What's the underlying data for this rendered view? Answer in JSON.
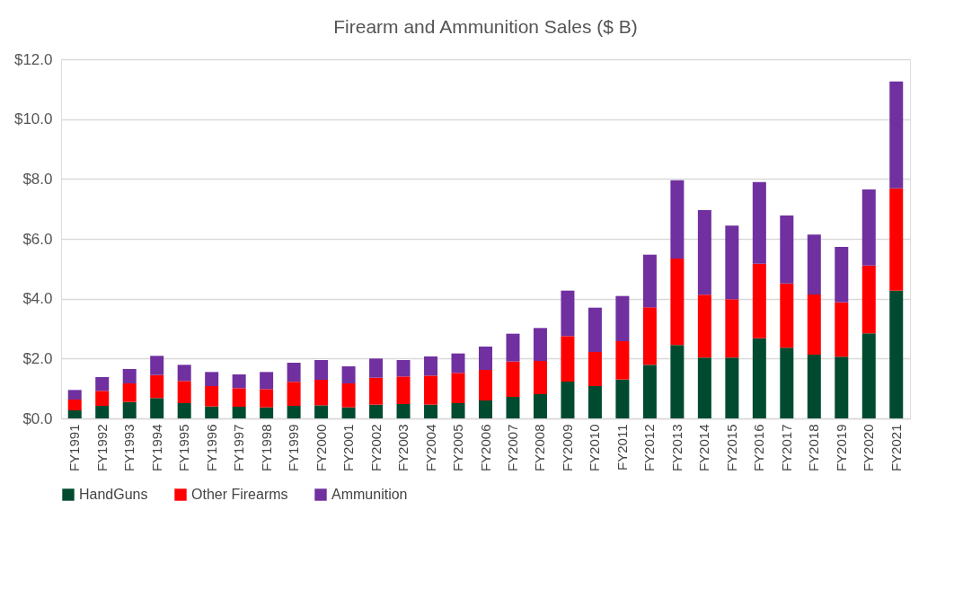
{
  "chart_data": {
    "type": "bar",
    "title": "Firearm and Ammunition Sales ($ B)",
    "stacked": true,
    "categories": [
      "FY1991",
      "FY1992",
      "FY1993",
      "FY1994",
      "FY1995",
      "FY1996",
      "FY1997",
      "FY1998",
      "FY1999",
      "FY2000",
      "FY2001",
      "FY2002",
      "FY2003",
      "FY2004",
      "FY2005",
      "FY2006",
      "FY2007",
      "FY2008",
      "FY2009",
      "FY2010",
      "FY2011",
      "FY2012",
      "FY2013",
      "FY2014",
      "FY2015",
      "FY2016",
      "FY2017",
      "FY2018",
      "FY2019",
      "FY2020",
      "FY2021"
    ],
    "series": [
      {
        "name": "HandGuns",
        "color": "#004b30",
        "values": [
          0.27,
          0.42,
          0.55,
          0.68,
          0.51,
          0.4,
          0.39,
          0.37,
          0.42,
          0.44,
          0.37,
          0.46,
          0.48,
          0.46,
          0.51,
          0.6,
          0.72,
          0.81,
          1.23,
          1.08,
          1.3,
          1.79,
          2.45,
          2.03,
          2.03,
          2.68,
          2.36,
          2.13,
          2.06,
          2.84,
          4.27
        ]
      },
      {
        "name": "Other Firearms",
        "color": "#ff0000",
        "values": [
          0.36,
          0.5,
          0.62,
          0.77,
          0.74,
          0.68,
          0.62,
          0.61,
          0.8,
          0.85,
          0.8,
          0.9,
          0.92,
          0.97,
          1.01,
          1.02,
          1.18,
          1.11,
          1.52,
          1.14,
          1.28,
          1.92,
          2.89,
          2.1,
          1.95,
          2.49,
          2.15,
          2.01,
          1.82,
          2.27,
          3.42
        ]
      },
      {
        "name": "Ammunition",
        "color": "#7030a0",
        "values": [
          0.32,
          0.46,
          0.48,
          0.64,
          0.54,
          0.47,
          0.46,
          0.57,
          0.64,
          0.66,
          0.57,
          0.64,
          0.55,
          0.64,
          0.65,
          0.78,
          0.93,
          1.1,
          1.52,
          1.48,
          1.51,
          1.76,
          2.62,
          2.83,
          2.46,
          2.73,
          2.27,
          2.0,
          1.85,
          2.54,
          3.57
        ]
      }
    ],
    "ylim": [
      0,
      12
    ],
    "yticks": [
      {
        "value": 0,
        "label": "$0.0"
      },
      {
        "value": 2,
        "label": "$2.0"
      },
      {
        "value": 4,
        "label": "$4.0"
      },
      {
        "value": 6,
        "label": "$6.0"
      },
      {
        "value": 8,
        "label": "$8.0"
      },
      {
        "value": 10,
        "label": "$10.0"
      },
      {
        "value": 12,
        "label": "$12.0"
      }
    ],
    "grid": "y",
    "legend": "bottom"
  }
}
